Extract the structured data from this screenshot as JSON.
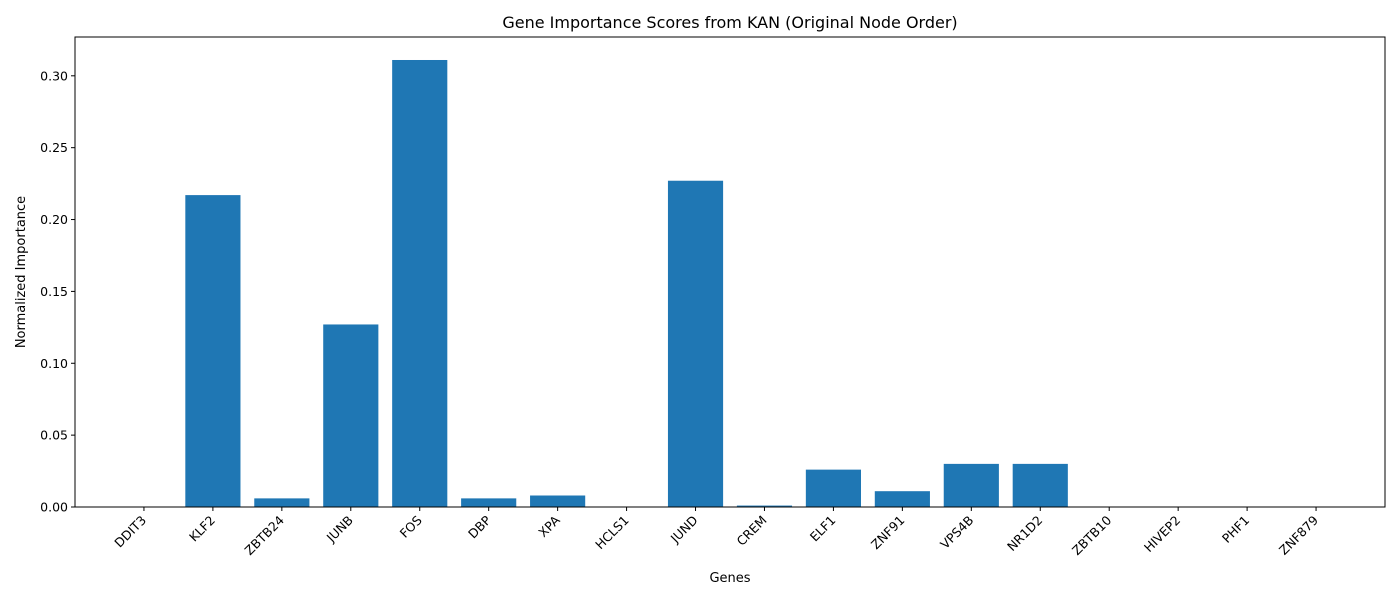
{
  "chart_data": {
    "type": "bar",
    "title": "Gene Importance Scores from KAN (Original Node Order)",
    "xlabel": "Genes",
    "ylabel": "Normalized Importance",
    "categories": [
      "DDIT3",
      "KLF2",
      "ZBTB24",
      "JUNB",
      "FOS",
      "DBP",
      "XPA",
      "HCLS1",
      "JUND",
      "CREM",
      "ELF1",
      "ZNF91",
      "VPS4B",
      "NR1D2",
      "ZBTB10",
      "HIVEP2",
      "PHF1",
      "ZNF879"
    ],
    "values": [
      0.0,
      0.217,
      0.006,
      0.127,
      0.311,
      0.006,
      0.008,
      0.0,
      0.227,
      0.001,
      0.026,
      0.011,
      0.03,
      0.03,
      0.0,
      0.0,
      0.0,
      0.0
    ],
    "yticks": [
      0.0,
      0.05,
      0.1,
      0.15,
      0.2,
      0.25,
      0.3
    ],
    "ytick_labels": [
      "0.00",
      "0.05",
      "0.10",
      "0.15",
      "0.20",
      "0.25",
      "0.30"
    ],
    "ylim": [
      0,
      0.327
    ],
    "grid": false,
    "bar_color": "#1f77b4"
  }
}
